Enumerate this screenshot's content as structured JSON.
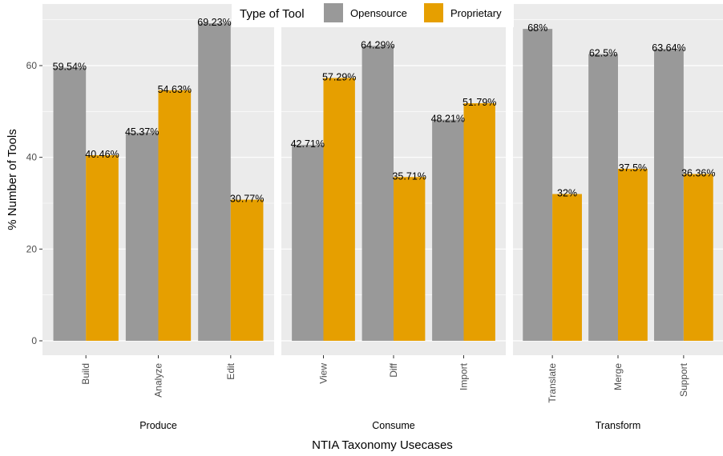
{
  "chart_data": {
    "type": "bar",
    "title": "",
    "xlabel": "NTIA Taxonomy Usecases",
    "ylabel": "% Number of Tools",
    "ylim": [
      0,
      70
    ],
    "yticks": [
      0,
      20,
      40,
      60
    ],
    "grid": true,
    "legend": {
      "title": "Type of Tool",
      "position": "top-center"
    },
    "groups": [
      {
        "name": "Produce",
        "categories": [
          "Build",
          "Analyze",
          "Edit"
        ]
      },
      {
        "name": "Consume",
        "categories": [
          "View",
          "Diff",
          "Import"
        ]
      },
      {
        "name": "Transform",
        "categories": [
          "Translate",
          "Merge",
          "Support"
        ]
      }
    ],
    "series": [
      {
        "name": "Opensource",
        "color": "#999999",
        "values": [
          59.54,
          45.37,
          69.23,
          42.71,
          64.29,
          48.21,
          68,
          62.5,
          63.64
        ],
        "labels": [
          "59.54%",
          "45.37%",
          "69.23%",
          "42.71%",
          "64.29%",
          "48.21%",
          "68%",
          "62.5%",
          "63.64%"
        ]
      },
      {
        "name": "Proprietary",
        "color": "#E69F00",
        "values": [
          40.46,
          54.63,
          30.77,
          57.29,
          35.71,
          51.79,
          32,
          37.5,
          36.36
        ],
        "labels": [
          "40.46%",
          "54.63%",
          "30.77%",
          "57.29%",
          "35.71%",
          "51.79%",
          "32%",
          "37.5%",
          "36.36%"
        ]
      }
    ]
  }
}
